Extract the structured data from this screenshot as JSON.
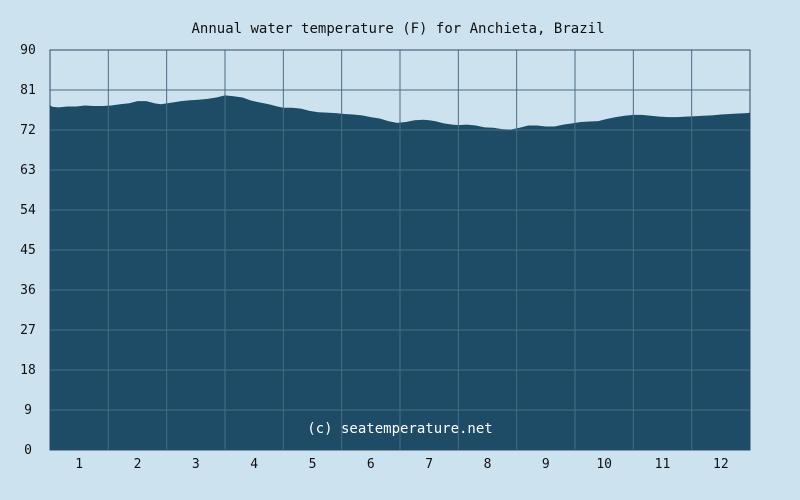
{
  "chart_data": {
    "type": "area",
    "title": "Annual water temperature (F) for Anchieta, Brazil",
    "xlabel": "",
    "ylabel": "",
    "ylim": [
      0,
      90
    ],
    "yticks": [
      "0",
      "9",
      "18",
      "27",
      "36",
      "45",
      "54",
      "63",
      "72",
      "81",
      "90"
    ],
    "categories": [
      "1",
      "2",
      "3",
      "4",
      "5",
      "6",
      "7",
      "8",
      "9",
      "10",
      "11",
      "12"
    ],
    "grid": true,
    "legend": "none",
    "annotation": "(c) seatemperature.net",
    "colors": {
      "background": "#cce3ef",
      "plot_fill": "#1e4b66",
      "grid": "#4a6d86",
      "axis": "#2b4d66"
    },
    "series": [
      {
        "x": [
          0.0,
          0.05,
          0.15,
          0.3,
          0.45,
          0.6,
          0.75,
          0.9,
          1.05,
          1.2,
          1.35,
          1.5,
          1.65,
          1.8,
          1.9,
          2.0,
          2.1,
          2.25,
          2.4,
          2.55,
          2.7,
          2.85,
          3.0,
          3.15,
          3.3,
          3.45,
          3.6,
          3.75,
          3.9,
          4.0,
          4.15,
          4.3,
          4.45,
          4.6,
          4.75,
          4.9,
          5.05,
          5.2,
          5.35,
          5.5,
          5.65,
          5.8,
          5.95,
          6.1,
          6.25,
          6.4,
          6.5,
          6.6,
          6.75,
          6.9,
          7.0,
          7.15,
          7.3,
          7.45,
          7.6,
          7.75,
          7.9,
          8.05,
          8.2,
          8.35,
          8.5,
          8.65,
          8.8,
          8.95,
          9.1,
          9.25,
          9.4,
          9.55,
          9.7,
          9.85,
          10.0,
          10.15,
          10.3,
          10.45,
          10.6,
          10.75,
          10.9,
          11.05,
          11.2,
          11.35,
          11.5,
          11.65,
          11.8,
          11.95,
          12.0
        ],
        "values": [
          77.5,
          77.2,
          77.1,
          77.3,
          77.3,
          77.5,
          77.4,
          77.4,
          77.5,
          77.8,
          78.0,
          78.5,
          78.5,
          78.0,
          77.8,
          78.0,
          78.2,
          78.5,
          78.7,
          78.8,
          79.0,
          79.3,
          79.8,
          79.6,
          79.3,
          78.6,
          78.2,
          77.8,
          77.3,
          77.0,
          77.0,
          76.8,
          76.3,
          76.0,
          75.9,
          75.8,
          75.6,
          75.5,
          75.3,
          74.9,
          74.6,
          74.0,
          73.6,
          73.8,
          74.2,
          74.3,
          74.2,
          74.0,
          73.5,
          73.2,
          73.1,
          73.2,
          73.0,
          72.6,
          72.5,
          72.2,
          72.1,
          72.5,
          73.0,
          73.0,
          72.8,
          72.8,
          73.2,
          73.5,
          73.8,
          73.9,
          74.0,
          74.5,
          74.9,
          75.2,
          75.4,
          75.4,
          75.2,
          75.0,
          74.9,
          74.9,
          75.0,
          75.1,
          75.2,
          75.3,
          75.5,
          75.6,
          75.7,
          75.8,
          75.9
        ]
      }
    ]
  }
}
